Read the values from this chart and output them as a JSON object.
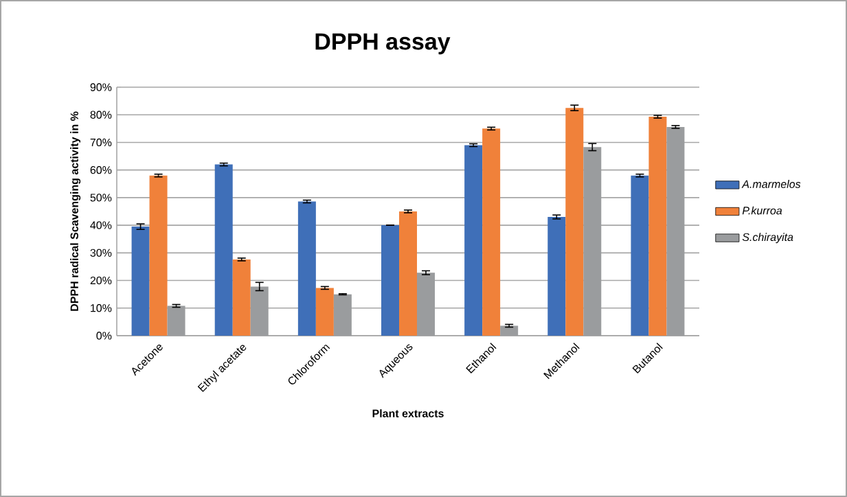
{
  "chart_data": {
    "type": "bar",
    "title": "DPPH assay",
    "xlabel": "Plant extracts",
    "ylabel": "DPPH radical  Scavenging  activity in %",
    "categories": [
      "Acetone",
      "Ethyl acetate",
      "Chloroform",
      "Aqueous",
      "Ethanol",
      "Methanol",
      "Butanol"
    ],
    "series": [
      {
        "name": "A.marmelos",
        "color": "#3f6fb8",
        "values": [
          39.5,
          62,
          48.6,
          40,
          69,
          43,
          58
        ],
        "errors": [
          1,
          0.5,
          0.5,
          0,
          0.5,
          0.7,
          0.5
        ]
      },
      {
        "name": "P.kurroa",
        "color": "#f0813a",
        "values": [
          58,
          27.6,
          17.3,
          45,
          75,
          82.5,
          79.3
        ],
        "errors": [
          0.5,
          0.5,
          0.5,
          0.5,
          0.5,
          1,
          0.5
        ]
      },
      {
        "name": "S.chirayita",
        "color": "#9a9c9e",
        "values": [
          10.8,
          17.8,
          15,
          22.8,
          3.6,
          68.3,
          75.6
        ],
        "errors": [
          0.5,
          1.5,
          0.2,
          0.7,
          0.5,
          1.3,
          0.5
        ]
      }
    ],
    "ylim": [
      0,
      90
    ],
    "yticks": [
      {
        "value": 0,
        "label": "0%"
      },
      {
        "value": 10,
        "label": "10%"
      },
      {
        "value": 20,
        "label": "20%"
      },
      {
        "value": 30,
        "label": "30%"
      },
      {
        "value": 40,
        "label": "40%"
      },
      {
        "value": 50,
        "label": "50%"
      },
      {
        "value": 60,
        "label": "60%"
      },
      {
        "value": 70,
        "label": "70%"
      },
      {
        "value": 80,
        "label": "80%"
      },
      {
        "value": 90,
        "label": "90%"
      }
    ],
    "grid": "y",
    "legend": "right"
  }
}
